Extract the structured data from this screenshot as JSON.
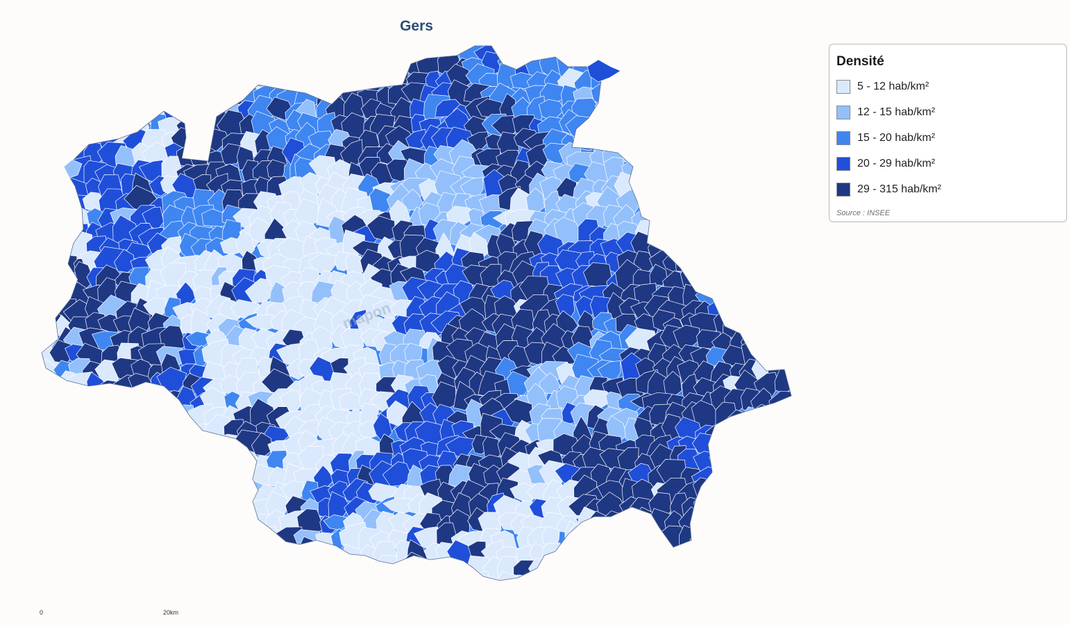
{
  "title": "Gers",
  "watermark": "mapon",
  "legend": {
    "title": "Densité",
    "classes": [
      {
        "label": "5 - 12 hab/km²",
        "color": "#dbe9fd"
      },
      {
        "label": "12 - 15 hab/km²",
        "color": "#93c0fb"
      },
      {
        "label": "15 - 20 hab/km²",
        "color": "#3f86f1"
      },
      {
        "label": "20 - 29 hab/km²",
        "color": "#1f4fd9"
      },
      {
        "label": "29 - 315 hab/km²",
        "color": "#1f3884"
      }
    ],
    "source": "Source : INSEE"
  },
  "scale": {
    "start_label": "0",
    "end_label": "20km"
  }
}
